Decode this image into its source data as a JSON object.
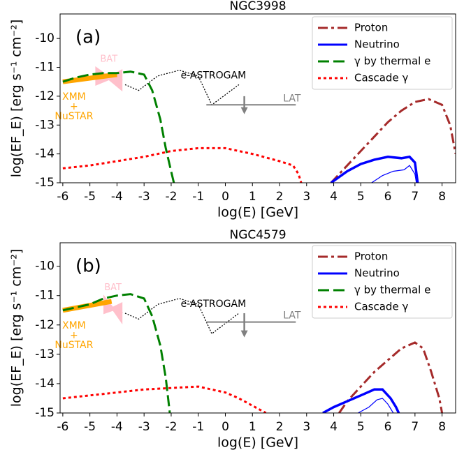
{
  "chart_data": [
    {
      "type": "line",
      "title": "NGC3998",
      "panel_label": "(a)",
      "xlabel": "log(E) [GeV]",
      "ylabel": "log(EF_E) [erg s⁻¹ cm⁻²]",
      "xlim": [
        -6.1,
        8.5
      ],
      "ylim": [
        -15,
        -9.15
      ],
      "xticks": [
        -6,
        -5,
        -4,
        -3,
        -2,
        -1,
        0,
        1,
        2,
        3,
        4,
        5,
        6,
        7,
        8
      ],
      "yticks": [
        -15,
        -14,
        -13,
        -12,
        -11,
        -10
      ],
      "legend": "upper right",
      "series": [
        {
          "name": "Proton",
          "color": "#a52a2a",
          "style": "dashdot",
          "x": [
            3.9,
            4.5,
            5,
            5.5,
            6,
            6.5,
            7,
            7.5,
            8,
            8.3,
            8.5
          ],
          "values": [
            -15,
            -14.4,
            -13.9,
            -13.4,
            -12.9,
            -12.5,
            -12.2,
            -12.1,
            -12.3,
            -13,
            -14
          ]
        },
        {
          "name": "Neutrino",
          "color": "#0000ff",
          "style": "solid",
          "x": [
            3.9,
            4.5,
            5,
            5.5,
            6,
            6.5,
            6.8,
            7,
            7.1
          ],
          "values": [
            -15,
            -14.6,
            -14.35,
            -14.2,
            -14.1,
            -14.15,
            -14.1,
            -14.3,
            -15
          ]
        },
        {
          "name": "γ by thermal e",
          "color": "#008000",
          "style": "dashed",
          "x": [
            -6,
            -5.5,
            -5,
            -4.5,
            -4,
            -3.5,
            -3,
            -2.7,
            -2.4,
            -2.2,
            -2,
            -1.9
          ],
          "values": [
            -11.5,
            -11.35,
            -11.25,
            -11.2,
            -11.2,
            -11.15,
            -11.25,
            -11.8,
            -12.8,
            -13.8,
            -14.6,
            -15
          ]
        },
        {
          "name": "Cascade γ",
          "color": "#ff0000",
          "style": "dotted",
          "x": [
            -6,
            -5,
            -4,
            -3,
            -2,
            -1,
            0,
            1,
            2,
            2.5,
            2.7,
            2.8
          ],
          "values": [
            -14.5,
            -14.4,
            -14.25,
            -14.1,
            -13.9,
            -13.8,
            -13.8,
            -14,
            -14.25,
            -14.4,
            -14.7,
            -15
          ]
        }
      ],
      "thin_neutrino": {
        "color": "#0000ff",
        "x": [
          5.4,
          5.8,
          6.2,
          6.6,
          6.8,
          7,
          7.05
        ],
        "values": [
          -15,
          -14.75,
          -14.6,
          -14.55,
          -14.4,
          -14.7,
          -15
        ]
      },
      "instruments": {
        "xmm": {
          "label": [
            "XMM",
            "+",
            "NuSTAR"
          ],
          "color": "#ffa500",
          "x": [
            -6,
            -4
          ],
          "values": [
            -11.5,
            -11.25
          ]
        },
        "bat": {
          "label": "BAT",
          "color": "#ffc0cb",
          "x": [
            -4.8,
            -3.8
          ],
          "values": [
            -11.3,
            -11.45
          ]
        },
        "astrogam": {
          "label": "e-ASTROGAM",
          "color": "#000000",
          "x": [
            -3.7,
            -3.2,
            -2.5,
            -1.7,
            -1,
            -0.5,
            0.5
          ],
          "values": [
            -11.6,
            -11.8,
            -11.3,
            -11.1,
            -11.3,
            -12.3,
            -11.6
          ]
        },
        "lat": {
          "label": "LAT",
          "color": "#808080",
          "x": [
            -0.7,
            2.6
          ],
          "values": [
            -12.3,
            -12.3
          ],
          "arrow_x": 0.7,
          "arrow": [
            -12,
            -12.6
          ]
        }
      }
    },
    {
      "type": "line",
      "title": "NGC4579",
      "panel_label": "(b)",
      "xlabel": "log(E) [GeV]",
      "ylabel": "log(EF_E) [erg s⁻¹ cm⁻²]",
      "xlim": [
        -6.1,
        8.5
      ],
      "ylim": [
        -15,
        -9.2
      ],
      "xticks": [
        -6,
        -5,
        -4,
        -3,
        -2,
        -1,
        0,
        1,
        2,
        3,
        4,
        5,
        6,
        7,
        8
      ],
      "yticks": [
        -15,
        -14,
        -13,
        -12,
        -11,
        -10
      ],
      "legend": "upper right",
      "series": [
        {
          "name": "Proton",
          "color": "#a52a2a",
          "style": "dashdot",
          "x": [
            4.2,
            4.5,
            5,
            5.5,
            6,
            6.5,
            7,
            7.3,
            7.6,
            7.9,
            8
          ],
          "values": [
            -15,
            -14.6,
            -14.1,
            -13.6,
            -13.2,
            -12.8,
            -12.6,
            -12.8,
            -13.6,
            -14.5,
            -15
          ]
        },
        {
          "name": "Neutrino",
          "color": "#0000ff",
          "style": "solid",
          "x": [
            3.6,
            4,
            4.5,
            5,
            5.5,
            5.8,
            6.1,
            6.3,
            6.4
          ],
          "values": [
            -15,
            -14.8,
            -14.6,
            -14.4,
            -14.2,
            -14.2,
            -14.5,
            -14.8,
            -15
          ]
        },
        {
          "name": "γ by thermal e",
          "color": "#008000",
          "style": "dashed",
          "x": [
            -6,
            -5,
            -4.5,
            -4,
            -3.5,
            -3,
            -2.7,
            -2.4,
            -2.2,
            -2.05
          ],
          "values": [
            -11.5,
            -11.3,
            -11.1,
            -11,
            -10.95,
            -11.1,
            -11.7,
            -12.7,
            -13.8,
            -15
          ]
        },
        {
          "name": "Cascade γ",
          "color": "#ff0000",
          "style": "dotted",
          "x": [
            -6,
            -5,
            -4,
            -3,
            -2,
            -1,
            0,
            0.5,
            1,
            1.5
          ],
          "values": [
            -14.5,
            -14.4,
            -14.3,
            -14.2,
            -14.15,
            -14.1,
            -14.3,
            -14.5,
            -14.75,
            -15
          ]
        }
      ],
      "thin_neutrino": {
        "color": "#0000ff",
        "x": [
          4.9,
          5.3,
          5.6,
          5.8,
          6,
          6.2
        ],
        "values": [
          -15,
          -14.8,
          -14.55,
          -14.5,
          -14.7,
          -15
        ]
      },
      "instruments": {
        "xmm": {
          "label": [
            "XMM",
            "+",
            "NuSTAR"
          ],
          "color": "#ffa500",
          "x": [
            -6,
            -4.2
          ],
          "values": [
            -11.5,
            -11.2
          ]
        },
        "bat": {
          "label": "BAT",
          "color": "#ffc0cb",
          "x": [
            -4.5,
            -3.8
          ],
          "values": [
            -11.3,
            -11.6
          ]
        },
        "astrogam": {
          "label": "e-ASTROGAM",
          "color": "#000000",
          "x": [
            -3.7,
            -3.2,
            -2.5,
            -1.7,
            -1,
            -0.5,
            0.5
          ],
          "values": [
            -11.6,
            -11.8,
            -11.3,
            -11.1,
            -11.3,
            -12.3,
            -11.6
          ]
        },
        "lat": {
          "label": "LAT",
          "color": "#808080",
          "x": [
            -0.7,
            2.6
          ],
          "values": [
            -11.9,
            -11.9
          ],
          "arrow_x": 0.7,
          "arrow": [
            -11.6,
            -12.4
          ]
        }
      }
    }
  ]
}
